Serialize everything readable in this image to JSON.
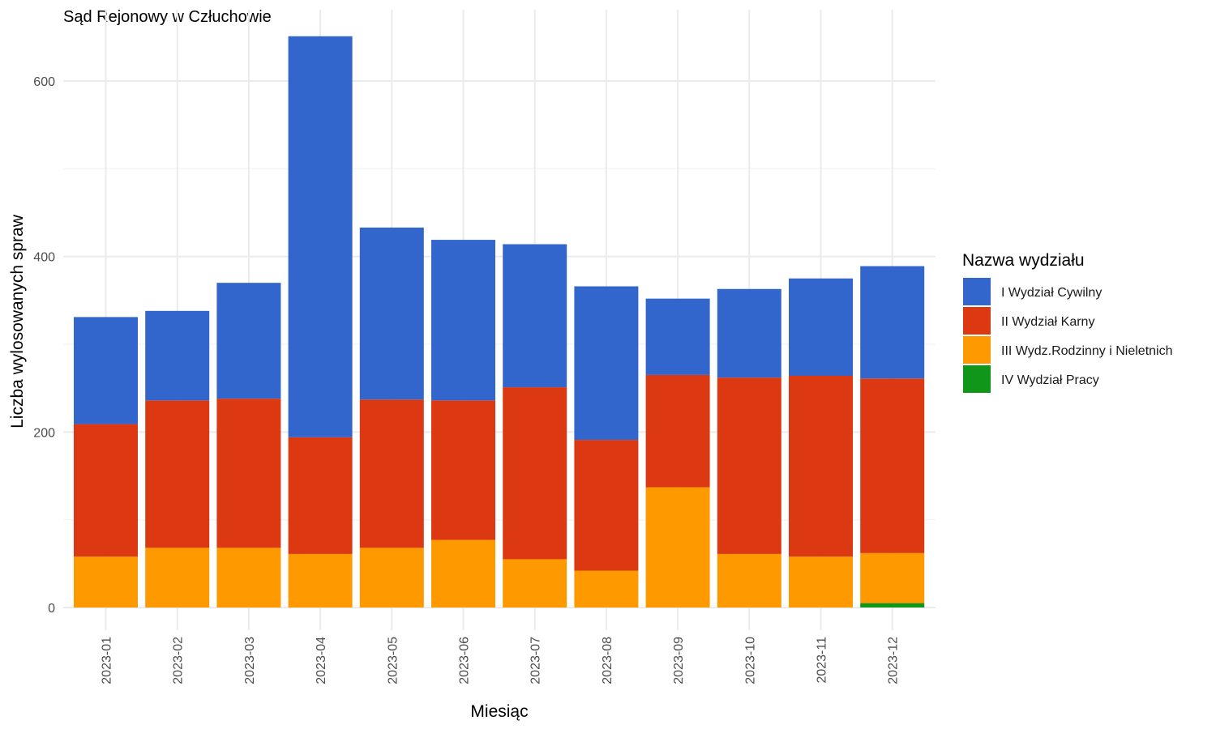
{
  "chart_data": {
    "type": "bar",
    "stacked": true,
    "title": "Sąd Rejonowy w Człuchowie",
    "xlabel": "Miesiąc",
    "ylabel": "Liczba wylosowanych spraw",
    "ylim": [
      0,
      650
    ],
    "yticks": [
      0,
      200,
      400,
      600
    ],
    "grid": true,
    "legend_title": "Nazwa wydziału",
    "legend_position": "right",
    "categories": [
      "2023-01",
      "2023-02",
      "2023-03",
      "2023-04",
      "2023-05",
      "2023-06",
      "2023-07",
      "2023-08",
      "2023-09",
      "2023-10",
      "2023-11",
      "2023-12"
    ],
    "series": [
      {
        "name": "I Wydział Cywilny",
        "color": "#3366cc",
        "values": [
          122,
          102,
          132,
          457,
          196,
          183,
          163,
          175,
          87,
          101,
          111,
          128
        ]
      },
      {
        "name": "II Wydział Karny",
        "color": "#dc3912",
        "values": [
          151,
          168,
          170,
          133,
          169,
          159,
          196,
          149,
          128,
          201,
          206,
          199
        ]
      },
      {
        "name": "III Wydz.Rodzinny i Nieletnich",
        "color": "#ff9900",
        "values": [
          58,
          68,
          68,
          61,
          68,
          77,
          55,
          42,
          137,
          61,
          58,
          57
        ]
      },
      {
        "name": "IV Wydział Pracy",
        "color": "#109618",
        "values": [
          0,
          0,
          0,
          0,
          0,
          0,
          0,
          0,
          0,
          0,
          0,
          5
        ]
      }
    ]
  }
}
